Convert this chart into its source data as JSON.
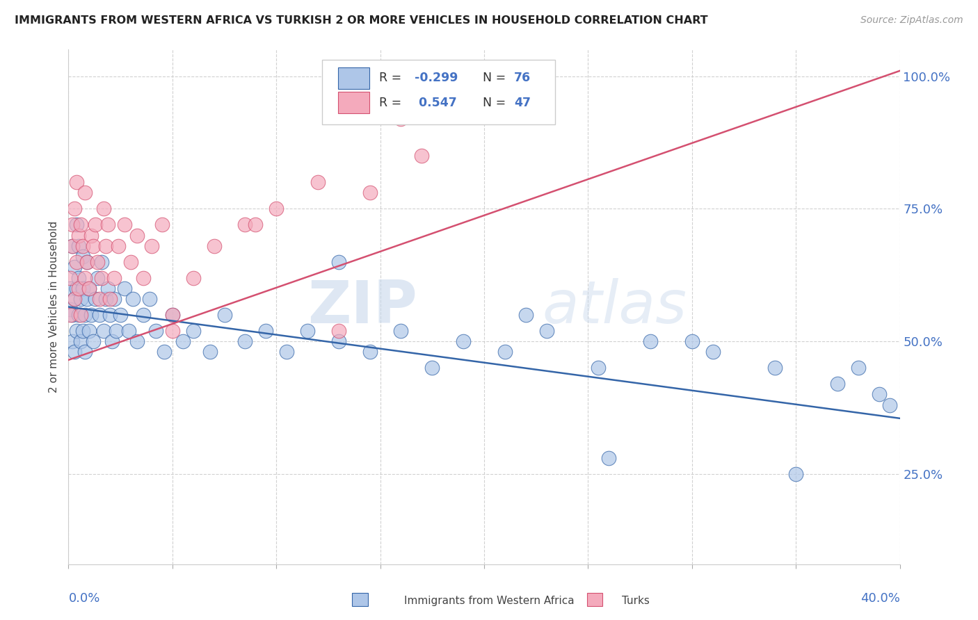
{
  "title": "IMMIGRANTS FROM WESTERN AFRICA VS TURKISH 2 OR MORE VEHICLES IN HOUSEHOLD CORRELATION CHART",
  "source": "Source: ZipAtlas.com",
  "ylabel": "2 or more Vehicles in Household",
  "yticks_right": [
    "25.0%",
    "50.0%",
    "75.0%",
    "100.0%"
  ],
  "yticks_right_vals": [
    0.25,
    0.5,
    0.75,
    1.0
  ],
  "xmin": 0.0,
  "xmax": 0.4,
  "ymin": 0.08,
  "ymax": 1.05,
  "blue_R": -0.299,
  "blue_N": 76,
  "pink_R": 0.547,
  "pink_N": 47,
  "blue_color": "#aec6e8",
  "pink_color": "#f4aabc",
  "blue_line_color": "#3465a8",
  "pink_line_color": "#d45070",
  "legend_label_blue": "Immigrants from Western Africa",
  "legend_label_pink": "Turks",
  "watermark_zip": "ZIP",
  "watermark_atlas": "atlas",
  "blue_scatter_x": [
    0.001,
    0.001,
    0.002,
    0.002,
    0.002,
    0.003,
    0.003,
    0.003,
    0.004,
    0.004,
    0.004,
    0.005,
    0.005,
    0.005,
    0.006,
    0.006,
    0.007,
    0.007,
    0.007,
    0.008,
    0.008,
    0.009,
    0.009,
    0.01,
    0.01,
    0.011,
    0.012,
    0.013,
    0.014,
    0.015,
    0.016,
    0.017,
    0.018,
    0.019,
    0.02,
    0.021,
    0.022,
    0.023,
    0.025,
    0.027,
    0.029,
    0.031,
    0.033,
    0.036,
    0.039,
    0.042,
    0.046,
    0.05,
    0.055,
    0.06,
    0.068,
    0.075,
    0.085,
    0.095,
    0.105,
    0.115,
    0.13,
    0.145,
    0.16,
    0.175,
    0.19,
    0.21,
    0.23,
    0.255,
    0.28,
    0.31,
    0.34,
    0.37,
    0.39,
    0.395,
    0.13,
    0.22,
    0.26,
    0.3,
    0.35,
    0.38
  ],
  "blue_scatter_y": [
    0.56,
    0.6,
    0.5,
    0.55,
    0.68,
    0.48,
    0.58,
    0.64,
    0.52,
    0.6,
    0.72,
    0.55,
    0.62,
    0.68,
    0.5,
    0.58,
    0.52,
    0.6,
    0.66,
    0.55,
    0.48,
    0.58,
    0.65,
    0.52,
    0.6,
    0.55,
    0.5,
    0.58,
    0.62,
    0.55,
    0.65,
    0.52,
    0.58,
    0.6,
    0.55,
    0.5,
    0.58,
    0.52,
    0.55,
    0.6,
    0.52,
    0.58,
    0.5,
    0.55,
    0.58,
    0.52,
    0.48,
    0.55,
    0.5,
    0.52,
    0.48,
    0.55,
    0.5,
    0.52,
    0.48,
    0.52,
    0.5,
    0.48,
    0.52,
    0.45,
    0.5,
    0.48,
    0.52,
    0.45,
    0.5,
    0.48,
    0.45,
    0.42,
    0.4,
    0.38,
    0.65,
    0.55,
    0.28,
    0.5,
    0.25,
    0.45
  ],
  "pink_scatter_x": [
    0.001,
    0.001,
    0.002,
    0.002,
    0.003,
    0.003,
    0.004,
    0.004,
    0.005,
    0.005,
    0.006,
    0.006,
    0.007,
    0.008,
    0.008,
    0.009,
    0.01,
    0.011,
    0.012,
    0.013,
    0.014,
    0.015,
    0.016,
    0.017,
    0.018,
    0.019,
    0.02,
    0.022,
    0.024,
    0.027,
    0.03,
    0.033,
    0.036,
    0.04,
    0.045,
    0.05,
    0.06,
    0.07,
    0.085,
    0.1,
    0.12,
    0.145,
    0.17,
    0.05,
    0.09,
    0.13,
    0.16
  ],
  "pink_scatter_y": [
    0.55,
    0.62,
    0.68,
    0.72,
    0.58,
    0.75,
    0.65,
    0.8,
    0.7,
    0.6,
    0.55,
    0.72,
    0.68,
    0.62,
    0.78,
    0.65,
    0.6,
    0.7,
    0.68,
    0.72,
    0.65,
    0.58,
    0.62,
    0.75,
    0.68,
    0.72,
    0.58,
    0.62,
    0.68,
    0.72,
    0.65,
    0.7,
    0.62,
    0.68,
    0.72,
    0.55,
    0.62,
    0.68,
    0.72,
    0.75,
    0.8,
    0.78,
    0.85,
    0.52,
    0.72,
    0.52,
    0.92
  ]
}
